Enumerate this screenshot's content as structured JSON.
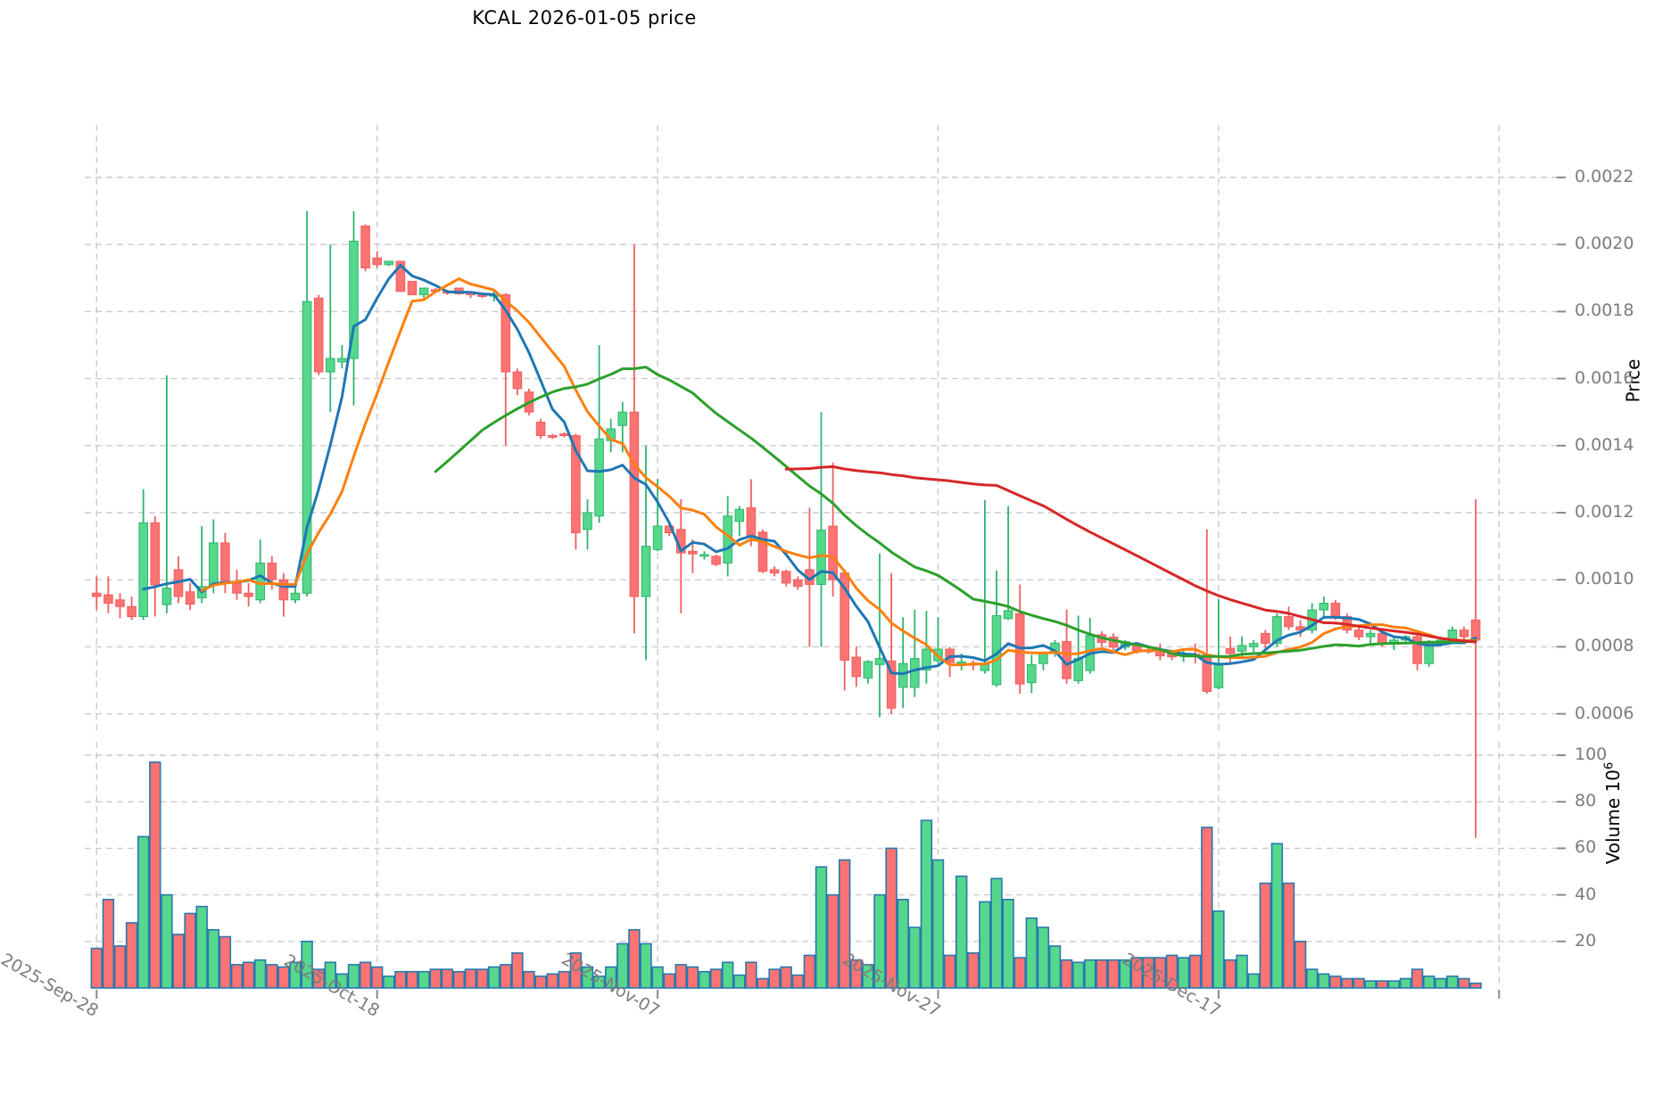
{
  "title": "KCAL  2026-01-05  price",
  "chart_data": {
    "type": "candlestick_with_volume",
    "title": "KCAL  2026-01-05  price",
    "price_axis_label": "Price",
    "volume_axis_label": "Volume  10",
    "volume_axis_label_sup": "6",
    "price_ticks": [
      0.0006,
      0.0008,
      0.001,
      0.0012,
      0.0014,
      0.0016,
      0.0018,
      0.002,
      0.0022
    ],
    "price_tick_labels": [
      "0.0006",
      "0.0008",
      "0.0010",
      "0.0012",
      "0.0014",
      "0.0016",
      "0.0018",
      "0.0020",
      "0.0022"
    ],
    "volume_ticks": [
      20,
      40,
      60,
      80,
      100
    ],
    "volume_tick_labels": [
      "20",
      "40",
      "60",
      "80",
      "100"
    ],
    "volume_unit": 1000000,
    "x_ticks": [
      {
        "index": 0,
        "label": "2025-Sep-28"
      },
      {
        "index": 24,
        "label": "2025-Oct-18"
      },
      {
        "index": 48,
        "label": "2025-Nov-07"
      },
      {
        "index": 72,
        "label": "2025-Nov-27"
      },
      {
        "index": 96,
        "label": "2025-Dec-17"
      },
      {
        "index": 120,
        "label": ""
      }
    ],
    "grid": true,
    "legend": "none",
    "ma_periods": [
      5,
      10,
      30,
      60
    ],
    "ma_colors": [
      "#1f77b4",
      "#ff7f0e",
      "#2ca02c",
      "#d62728"
    ],
    "colors": {
      "up_fill": "#55d78c",
      "up_edge": "#2fb56d",
      "down_fill": "#fb7373",
      "down_edge": "#f05f5f",
      "volume_edge": "#2878af",
      "grid": "#cccccc",
      "tick_text": "#7c7c7c",
      "title_text": "#000000"
    },
    "candles_format": [
      "open",
      "high",
      "low",
      "close",
      "volume_millions"
    ],
    "candles": [
      [
        0.00096,
        0.00101,
        0.00091,
        0.00095,
        17
      ],
      [
        0.000955,
        0.00101,
        0.0009,
        0.00093,
        38
      ],
      [
        0.00094,
        0.00096,
        0.000885,
        0.00092,
        18
      ],
      [
        0.00092,
        0.00095,
        0.00088,
        0.00089,
        28
      ],
      [
        0.00089,
        0.00127,
        0.00088,
        0.00117,
        65
      ],
      [
        0.00117,
        0.00119,
        0.00089,
        0.000985,
        97
      ],
      [
        0.000926,
        0.00161,
        0.0009,
        0.000975,
        40
      ],
      [
        0.00103,
        0.00107,
        0.00093,
        0.00095,
        23
      ],
      [
        0.000964,
        0.00099,
        0.00091,
        0.000927,
        32
      ],
      [
        0.000946,
        0.00116,
        0.00093,
        0.00098,
        35
      ],
      [
        0.000985,
        0.00118,
        0.00096,
        0.00111,
        25
      ],
      [
        0.00111,
        0.00114,
        0.00096,
        0.00099,
        22
      ],
      [
        0.00099,
        0.00103,
        0.00094,
        0.00096,
        10
      ],
      [
        0.00096,
        0.00099,
        0.00092,
        0.00095,
        11
      ],
      [
        0.00094,
        0.00112,
        0.00093,
        0.00105,
        12
      ],
      [
        0.00105,
        0.00107,
        0.00097,
        0.001,
        10
      ],
      [
        0.001,
        0.00102,
        0.00089,
        0.00094,
        9
      ],
      [
        0.00094,
        0.001,
        0.00093,
        0.00096,
        11
      ],
      [
        0.00096,
        0.0021,
        0.00095,
        0.00183,
        20
      ],
      [
        0.00184,
        0.00185,
        0.00161,
        0.00162,
        8
      ],
      [
        0.00162,
        0.002,
        0.0015,
        0.00166,
        11
      ],
      [
        0.00165,
        0.0017,
        0.00163,
        0.00166,
        6
      ],
      [
        0.00166,
        0.0021,
        0.00152,
        0.00201,
        10
      ],
      [
        0.002055,
        0.00206,
        0.00192,
        0.00193,
        11
      ],
      [
        0.00196,
        0.00198,
        0.00193,
        0.00194,
        9
      ],
      [
        0.00194,
        0.00195,
        0.001935,
        0.00195,
        5
      ],
      [
        0.00195,
        0.00195,
        0.00186,
        0.00186,
        7
      ],
      [
        0.00189,
        0.00189,
        0.00185,
        0.00185,
        7
      ],
      [
        0.00185,
        0.00187,
        0.00184,
        0.00187,
        7
      ],
      [
        0.001865,
        0.00187,
        0.001855,
        0.00186,
        8
      ],
      [
        0.00186,
        0.001865,
        0.00185,
        0.001855,
        8
      ],
      [
        0.00187,
        0.00187,
        0.00185,
        0.001853,
        7
      ],
      [
        0.001855,
        0.00186,
        0.00184,
        0.00185,
        8
      ],
      [
        0.00185,
        0.001855,
        0.00184,
        0.001845,
        8
      ],
      [
        0.00185,
        0.00186,
        0.00183,
        0.00185,
        9
      ],
      [
        0.00185,
        0.001855,
        0.0014,
        0.00162,
        10
      ],
      [
        0.00162,
        0.00163,
        0.00155,
        0.00157,
        15
      ],
      [
        0.00156,
        0.00157,
        0.00149,
        0.0015,
        7
      ],
      [
        0.00147,
        0.00148,
        0.00142,
        0.00143,
        5
      ],
      [
        0.00143,
        0.001435,
        0.00142,
        0.001425,
        6
      ],
      [
        0.001435,
        0.00144,
        0.001425,
        0.00143,
        7
      ],
      [
        0.00143,
        0.001435,
        0.00109,
        0.00114,
        15
      ],
      [
        0.00115,
        0.00124,
        0.00109,
        0.0012,
        9
      ],
      [
        0.00119,
        0.0017,
        0.00117,
        0.00142,
        5
      ],
      [
        0.001415,
        0.00148,
        0.00138,
        0.00145,
        9
      ],
      [
        0.00146,
        0.00153,
        0.00138,
        0.0015,
        19
      ],
      [
        0.0015,
        0.002,
        0.00084,
        0.00095,
        25
      ],
      [
        0.00095,
        0.0014,
        0.00076,
        0.0011,
        19
      ],
      [
        0.00109,
        0.0013,
        0.001085,
        0.00116,
        9
      ],
      [
        0.00116,
        0.00117,
        0.00113,
        0.00114,
        6
      ],
      [
        0.00115,
        0.00124,
        0.0009,
        0.00108,
        10
      ],
      [
        0.001085,
        0.00112,
        0.00102,
        0.001077,
        9
      ],
      [
        0.00107,
        0.001085,
        0.00106,
        0.001075,
        7
      ],
      [
        0.00107,
        0.001075,
        0.00104,
        0.001046,
        8
      ],
      [
        0.00105,
        0.00125,
        0.00101,
        0.00119,
        11
      ],
      [
        0.001174,
        0.00122,
        0.00113,
        0.00121,
        5.5
      ],
      [
        0.001215,
        0.0013,
        0.0011,
        0.00113,
        11
      ],
      [
        0.001142,
        0.00115,
        0.00102,
        0.001025,
        4
      ],
      [
        0.00103,
        0.00104,
        0.00101,
        0.00102,
        8
      ],
      [
        0.001025,
        0.00103,
        0.00098,
        0.00099,
        9
      ],
      [
        0.001,
        0.00101,
        0.00097,
        0.00098,
        5.5
      ],
      [
        0.00103,
        0.001215,
        0.0008,
        0.000986,
        14
      ],
      [
        0.000986,
        0.0015,
        0.0008,
        0.001148,
        52
      ],
      [
        0.00116,
        0.00135,
        0.00095,
        0.001,
        40
      ],
      [
        0.00102,
        0.00103,
        0.00067,
        0.00076,
        55
      ],
      [
        0.000769,
        0.0008,
        0.00068,
        0.000711,
        12
      ],
      [
        0.000707,
        0.00076,
        0.00069,
        0.000756,
        10
      ],
      [
        0.000747,
        0.001078,
        0.00059,
        0.000765,
        40
      ],
      [
        0.000758,
        0.00102,
        0.0006,
        0.000617,
        60
      ],
      [
        0.000679,
        0.000888,
        0.000617,
        0.00075,
        38
      ],
      [
        0.000679,
        0.000911,
        0.00065,
        0.000765,
        26
      ],
      [
        0.000731,
        0.000907,
        0.00069,
        0.000793,
        72
      ],
      [
        0.000758,
        0.000888,
        0.00075,
        0.000793,
        55
      ],
      [
        0.000793,
        0.0008,
        0.00071,
        0.000753,
        14
      ],
      [
        0.00075,
        0.00078,
        0.00073,
        0.000755,
        48
      ],
      [
        0.00075,
        0.00076,
        0.00073,
        0.000745,
        15
      ],
      [
        0.000729,
        0.001238,
        0.00072,
        0.000747,
        37
      ],
      [
        0.000687,
        0.001028,
        0.00068,
        0.000893,
        47
      ],
      [
        0.000884,
        0.00122,
        0.00088,
        0.000908,
        38
      ],
      [
        0.000899,
        0.000986,
        0.00066,
        0.000689,
        13
      ],
      [
        0.000693,
        0.000776,
        0.000662,
        0.000747,
        30
      ],
      [
        0.00075,
        0.00078,
        0.00073,
        0.000784,
        26
      ],
      [
        0.000784,
        0.00082,
        0.00077,
        0.000811,
        18
      ],
      [
        0.000816,
        0.000911,
        0.00069,
        0.000705,
        12
      ],
      [
        0.000699,
        0.000893,
        0.00069,
        0.000765,
        11
      ],
      [
        0.000729,
        0.000886,
        0.00072,
        0.000834,
        12
      ],
      [
        0.000836,
        0.000846,
        0.0008,
        0.000813,
        12
      ],
      [
        0.000829,
        0.00084,
        0.00079,
        0.000799,
        12
      ],
      [
        0.000799,
        0.00082,
        0.00079,
        0.000815,
        12
      ],
      [
        0.000807,
        0.000815,
        0.00078,
        0.000789,
        13
      ],
      [
        0.00079,
        0.0008,
        0.00078,
        0.000785,
        13
      ],
      [
        0.000787,
        0.00081,
        0.00076,
        0.000773,
        13
      ],
      [
        0.00078,
        0.00079,
        0.00076,
        0.00077,
        14
      ],
      [
        0.000773,
        0.00079,
        0.000755,
        0.000778,
        13
      ],
      [
        0.000778,
        0.00081,
        0.00075,
        0.000775,
        14
      ],
      [
        0.000775,
        0.00115,
        0.00066,
        0.000667,
        69
      ],
      [
        0.000678,
        0.000942,
        0.000673,
        0.000749,
        33
      ],
      [
        0.000795,
        0.00083,
        0.00075,
        0.00078,
        12
      ],
      [
        0.000787,
        0.000831,
        0.00077,
        0.000804,
        14
      ],
      [
        0.0008,
        0.00082,
        0.00078,
        0.00081,
        6
      ],
      [
        0.00084,
        0.00085,
        0.00079,
        0.00081,
        45
      ],
      [
        0.00081,
        0.0009,
        0.0008,
        0.00089,
        62
      ],
      [
        0.00089,
        0.00092,
        0.00085,
        0.00086,
        45
      ],
      [
        0.00086,
        0.00088,
        0.00083,
        0.00085,
        20
      ],
      [
        0.00085,
        0.00093,
        0.00084,
        0.00091,
        8
      ],
      [
        0.00091,
        0.00095,
        0.00089,
        0.00093,
        6
      ],
      [
        0.00093,
        0.00094,
        0.00088,
        0.00089,
        5
      ],
      [
        0.00089,
        0.0009,
        0.00084,
        0.00085,
        4
      ],
      [
        0.00085,
        0.00086,
        0.00082,
        0.00083,
        4
      ],
      [
        0.00083,
        0.00085,
        0.00081,
        0.00084,
        3
      ],
      [
        0.00084,
        0.000845,
        0.0008,
        0.00081,
        3
      ],
      [
        0.00081,
        0.00083,
        0.00079,
        0.00082,
        3
      ],
      [
        0.00082,
        0.000835,
        0.00081,
        0.00083,
        4
      ],
      [
        0.00083,
        0.00084,
        0.00073,
        0.00075,
        8
      ],
      [
        0.00075,
        0.00082,
        0.00074,
        0.00081,
        5
      ],
      [
        0.00081,
        0.00083,
        0.0008,
        0.00082,
        4
      ],
      [
        0.00082,
        0.00086,
        0.00081,
        0.00085,
        5
      ],
      [
        0.00085,
        0.00086,
        0.00082,
        0.00083,
        4
      ],
      [
        0.00088,
        0.00124,
        0.00023,
        0.00082,
        2
      ]
    ]
  }
}
